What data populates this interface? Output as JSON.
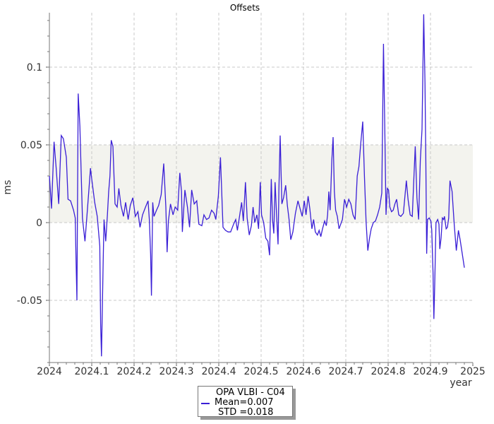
{
  "chart_data": {
    "type": "line",
    "title": "Offsets",
    "xlabel": "year",
    "ylabel": "ms",
    "xlim": [
      2024,
      2025
    ],
    "ylim": [
      -0.09,
      0.135
    ],
    "x_ticks": [
      2024,
      2024.1,
      2024.2,
      2024.3,
      2024.4,
      2024.5,
      2024.6,
      2024.7,
      2024.8,
      2024.9,
      2025
    ],
    "x_tick_labels": [
      "2024",
      "2024.1",
      "2024.2",
      "2024.3",
      "2024.4",
      "2024.5",
      "2024.6",
      "2024.7",
      "2024.8",
      "2024.9",
      "2025"
    ],
    "y_ticks": [
      -0.05,
      0,
      0.05,
      0.1
    ],
    "y_tick_labels": [
      "-0.05",
      "0",
      "0.05",
      "0.1"
    ],
    "grid": true,
    "band": [
      0.0,
      0.05
    ],
    "line_color": "#3a1fd6",
    "band_color": "#f3f3ee",
    "legend_position": "bottom-center",
    "series": [
      {
        "name": "OPA VLBI - C04",
        "mean_label": "Mean=0.007",
        "std_label": " STD =0.018",
        "points": [
          [
            2024.0,
            0.03
          ],
          [
            2024.005,
            0.009
          ],
          [
            2024.011,
            0.052
          ],
          [
            2024.016,
            0.035
          ],
          [
            2024.022,
            0.012
          ],
          [
            2024.028,
            0.056
          ],
          [
            2024.033,
            0.054
          ],
          [
            2024.04,
            0.042
          ],
          [
            2024.044,
            0.015
          ],
          [
            2024.05,
            0.014
          ],
          [
            2024.057,
            0.008
          ],
          [
            2024.061,
            0.003
          ],
          [
            2024.063,
            -0.025
          ],
          [
            2024.065,
            -0.05
          ],
          [
            2024.068,
            0.083
          ],
          [
            2024.072,
            0.062
          ],
          [
            2024.078,
            0.003
          ],
          [
            2024.084,
            -0.012
          ],
          [
            2024.088,
            0.002
          ],
          [
            2024.093,
            0.02
          ],
          [
            2024.097,
            0.035
          ],
          [
            2024.1,
            0.028
          ],
          [
            2024.107,
            0.013
          ],
          [
            2024.113,
            0.004
          ],
          [
            2024.119,
            -0.015
          ],
          [
            2024.121,
            -0.065
          ],
          [
            2024.123,
            -0.086
          ],
          [
            2024.127,
            -0.025
          ],
          [
            2024.129,
            0.002
          ],
          [
            2024.133,
            -0.012
          ],
          [
            2024.137,
            0.005
          ],
          [
            2024.14,
            0.02
          ],
          [
            2024.143,
            0.03
          ],
          [
            2024.146,
            0.053
          ],
          [
            2024.15,
            0.049
          ],
          [
            2024.155,
            0.012
          ],
          [
            2024.16,
            0.01
          ],
          [
            2024.164,
            0.022
          ],
          [
            2024.169,
            0.011
          ],
          [
            2024.175,
            0.004
          ],
          [
            2024.18,
            0.013
          ],
          [
            2024.186,
            0.002
          ],
          [
            2024.191,
            0.011
          ],
          [
            2024.197,
            0.016
          ],
          [
            2024.203,
            0.004
          ],
          [
            2024.209,
            0.007
          ],
          [
            2024.214,
            -0.003
          ],
          [
            2024.22,
            0.005
          ],
          [
            2024.227,
            0.01
          ],
          [
            2024.233,
            0.014
          ],
          [
            2024.236,
            0.002
          ],
          [
            2024.239,
            -0.02
          ],
          [
            2024.241,
            -0.047
          ],
          [
            2024.244,
            0.013
          ],
          [
            2024.247,
            0.004
          ],
          [
            2024.253,
            0.008
          ],
          [
            2024.258,
            0.011
          ],
          [
            2024.264,
            0.018
          ],
          [
            2024.27,
            0.038
          ],
          [
            2024.275,
            0.01
          ],
          [
            2024.278,
            -0.019
          ],
          [
            2024.281,
            0.001
          ],
          [
            2024.286,
            0.012
          ],
          [
            2024.292,
            0.005
          ],
          [
            2024.297,
            0.01
          ],
          [
            2024.303,
            0.008
          ],
          [
            2024.308,
            0.032
          ],
          [
            2024.312,
            0.02
          ],
          [
            2024.314,
            -0.006
          ],
          [
            2024.32,
            0.021
          ],
          [
            2024.326,
            0.01
          ],
          [
            2024.331,
            -0.003
          ],
          [
            2024.336,
            0.021
          ],
          [
            2024.342,
            0.012
          ],
          [
            2024.348,
            0.014
          ],
          [
            2024.353,
            -0.001
          ],
          [
            2024.36,
            -0.002
          ],
          [
            2024.365,
            0.005
          ],
          [
            2024.371,
            0.002
          ],
          [
            2024.377,
            0.003
          ],
          [
            2024.383,
            0.008
          ],
          [
            2024.389,
            0.006
          ],
          [
            2024.393,
            0.002
          ],
          [
            2024.399,
            0.017
          ],
          [
            2024.404,
            0.042
          ],
          [
            2024.408,
            0.012
          ],
          [
            2024.41,
            -0.003
          ],
          [
            2024.416,
            -0.005
          ],
          [
            2024.422,
            -0.006
          ],
          [
            2024.428,
            -0.006
          ],
          [
            2024.435,
            -0.001
          ],
          [
            2024.44,
            0.002
          ],
          [
            2024.444,
            -0.005
          ],
          [
            2024.449,
            0.004
          ],
          [
            2024.454,
            0.013
          ],
          [
            2024.458,
            0.001
          ],
          [
            2024.463,
            0.026
          ],
          [
            2024.467,
            0.003
          ],
          [
            2024.472,
            -0.008
          ],
          [
            2024.477,
            -0.002
          ],
          [
            2024.481,
            0.01
          ],
          [
            2024.485,
            0.0
          ],
          [
            2024.49,
            0.005
          ],
          [
            2024.494,
            -0.004
          ],
          [
            2024.498,
            0.026
          ],
          [
            2024.501,
            0.005
          ],
          [
            2024.506,
            0.0
          ],
          [
            2024.511,
            -0.01
          ],
          [
            2024.516,
            -0.012
          ],
          [
            2024.52,
            -0.021
          ],
          [
            2024.524,
            0.028
          ],
          [
            2024.527,
            0.002
          ],
          [
            2024.53,
            -0.007
          ],
          [
            2024.533,
            0.026
          ],
          [
            2024.537,
            0.002
          ],
          [
            2024.54,
            -0.014
          ],
          [
            2024.542,
            0.021
          ],
          [
            2024.545,
            0.056
          ],
          [
            2024.549,
            0.012
          ],
          [
            2024.553,
            0.016
          ],
          [
            2024.558,
            0.024
          ],
          [
            2024.562,
            0.011
          ],
          [
            2024.566,
            0.002
          ],
          [
            2024.57,
            -0.011
          ],
          [
            2024.575,
            -0.006
          ],
          [
            2024.581,
            0.006
          ],
          [
            2024.587,
            0.014
          ],
          [
            2024.592,
            0.009
          ],
          [
            2024.597,
            0.004
          ],
          [
            2024.602,
            0.014
          ],
          [
            2024.606,
            0.005
          ],
          [
            2024.611,
            0.017
          ],
          [
            2024.615,
            0.009
          ],
          [
            2024.62,
            -0.004
          ],
          [
            2024.624,
            0.002
          ],
          [
            2024.628,
            -0.006
          ],
          [
            2024.633,
            -0.008
          ],
          [
            2024.637,
            -0.005
          ],
          [
            2024.641,
            -0.009
          ],
          [
            2024.645,
            -0.004
          ],
          [
            2024.65,
            0.001
          ],
          [
            2024.654,
            -0.002
          ],
          [
            2024.657,
            0.005
          ],
          [
            2024.66,
            0.02
          ],
          [
            2024.663,
            0.008
          ],
          [
            2024.667,
            0.04
          ],
          [
            2024.67,
            0.055
          ],
          [
            2024.673,
            0.02
          ],
          [
            2024.676,
            0.008
          ],
          [
            2024.68,
            0.004
          ],
          [
            2024.684,
            -0.004
          ],
          [
            2024.688,
            -0.001
          ],
          [
            2024.692,
            0.002
          ],
          [
            2024.697,
            0.015
          ],
          [
            2024.702,
            0.01
          ],
          [
            2024.707,
            0.015
          ],
          [
            2024.712,
            0.012
          ],
          [
            2024.717,
            0.005
          ],
          [
            2024.722,
            0.002
          ],
          [
            2024.727,
            0.03
          ],
          [
            2024.731,
            0.036
          ],
          [
            2024.735,
            0.05
          ],
          [
            2024.74,
            0.065
          ],
          [
            2024.744,
            0.03
          ],
          [
            2024.748,
            0.0
          ],
          [
            2024.752,
            -0.018
          ],
          [
            2024.756,
            -0.01
          ],
          [
            2024.76,
            -0.004
          ],
          [
            2024.765,
            0.0
          ],
          [
            2024.77,
            0.001
          ],
          [
            2024.775,
            0.005
          ],
          [
            2024.78,
            0.01
          ],
          [
            2024.785,
            0.019
          ],
          [
            2024.789,
            0.115
          ],
          [
            2024.792,
            0.062
          ],
          [
            2024.795,
            0.005
          ],
          [
            2024.798,
            0.022
          ],
          [
            2024.801,
            0.021
          ],
          [
            2024.804,
            0.01
          ],
          [
            2024.808,
            0.007
          ],
          [
            2024.812,
            0.008
          ],
          [
            2024.816,
            0.012
          ],
          [
            2024.82,
            0.015
          ],
          [
            2024.825,
            0.005
          ],
          [
            2024.83,
            0.004
          ],
          [
            2024.836,
            0.006
          ],
          [
            2024.843,
            0.027
          ],
          [
            2024.847,
            0.015
          ],
          [
            2024.852,
            0.005
          ],
          [
            2024.857,
            0.004
          ],
          [
            2024.861,
            0.03
          ],
          [
            2024.864,
            0.049
          ],
          [
            2024.868,
            0.016
          ],
          [
            2024.872,
            0.002
          ],
          [
            2024.876,
            0.04
          ],
          [
            2024.88,
            0.06
          ],
          [
            2024.884,
            0.134
          ],
          [
            2024.887,
            0.09
          ],
          [
            2024.889,
            0.04
          ],
          [
            2024.891,
            -0.02
          ],
          [
            2024.893,
            0.002
          ],
          [
            2024.897,
            0.003
          ],
          [
            2024.901,
            0.001
          ],
          [
            2024.903,
            -0.005
          ],
          [
            2024.906,
            -0.032
          ],
          [
            2024.908,
            -0.062
          ],
          [
            2024.91,
            -0.04
          ],
          [
            2024.913,
            0.0
          ],
          [
            2024.917,
            0.002
          ],
          [
            2024.92,
            -0.001
          ],
          [
            2024.922,
            -0.017
          ],
          [
            2024.925,
            -0.01
          ],
          [
            2024.928,
            0.003
          ],
          [
            2024.931,
            0.002
          ],
          [
            2024.933,
            0.004
          ],
          [
            2024.937,
            -0.004
          ],
          [
            2024.94,
            -0.003
          ],
          [
            2024.943,
            0.003
          ],
          [
            2024.946,
            0.027
          ],
          [
            2024.951,
            0.02
          ],
          [
            2024.956,
            -0.001
          ],
          [
            2024.961,
            -0.018
          ],
          [
            2024.966,
            -0.005
          ],
          [
            2024.97,
            -0.011
          ],
          [
            2024.975,
            -0.02
          ],
          [
            2024.98,
            -0.029
          ]
        ]
      }
    ]
  }
}
